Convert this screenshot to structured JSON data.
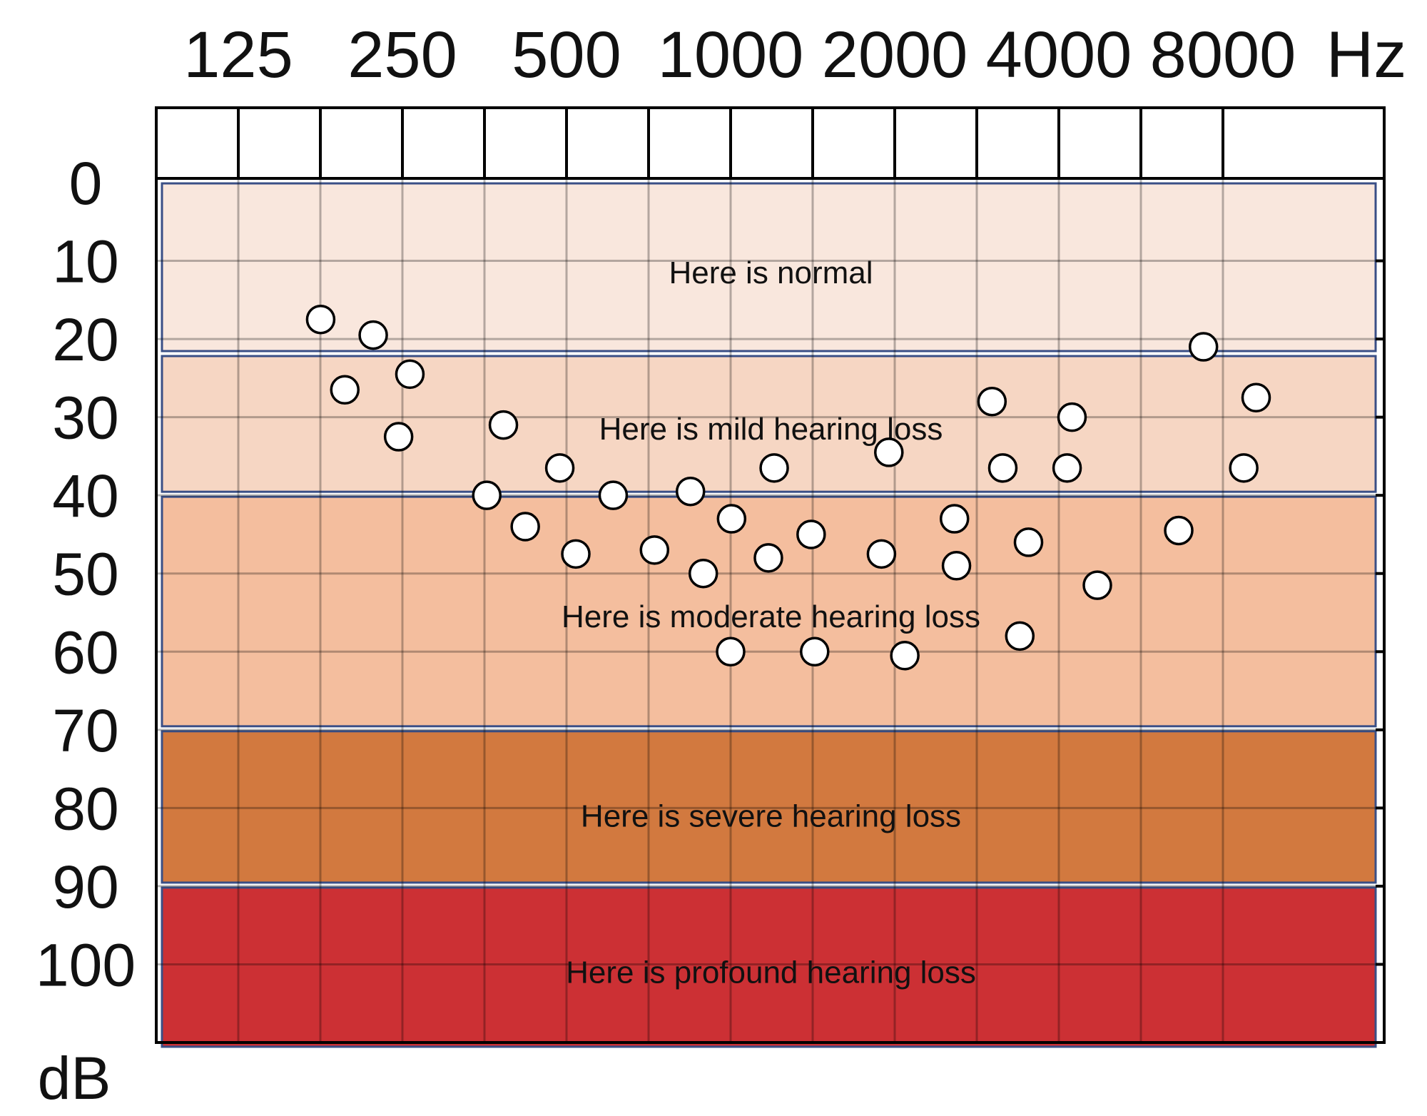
{
  "chart_data": {
    "type": "scatter",
    "title": "",
    "x_unit": "Hz",
    "y_unit": "dB",
    "x_tick_labels": [
      "125",
      "250",
      "500",
      "1000",
      "2000",
      "4000",
      "8000"
    ],
    "y_tick_labels": [
      "0",
      "10",
      "20",
      "30",
      "40",
      "50",
      "60",
      "70",
      "80",
      "90",
      "100"
    ],
    "y_range": [
      0,
      110
    ],
    "y_inverted": true,
    "grid": true,
    "bands": [
      {
        "label": "Here is normal",
        "from": 0,
        "to": 21,
        "color": "#f9e7dd"
      },
      {
        "label": "Here is mild hearing loss",
        "from": 22,
        "to": 39,
        "color": "#f6d6c3"
      },
      {
        "label": "Here is moderate hearing loss",
        "from": 40,
        "to": 69,
        "color": "#f4be9e"
      },
      {
        "label": "Here is severe hearing loss",
        "from": 70,
        "to": 89,
        "color": "#d2793f"
      },
      {
        "label": "Here is profound hearing loss",
        "from": 90,
        "to": 110,
        "color": "#cc3034"
      }
    ],
    "points": [
      {
        "x": 177,
        "y": 17.5
      },
      {
        "x": 196,
        "y": 26.5
      },
      {
        "x": 221,
        "y": 19.5
      },
      {
        "x": 246,
        "y": 32.5
      },
      {
        "x": 258,
        "y": 24.5
      },
      {
        "x": 357,
        "y": 40
      },
      {
        "x": 383,
        "y": 31
      },
      {
        "x": 420,
        "y": 44
      },
      {
        "x": 486,
        "y": 36.5
      },
      {
        "x": 520,
        "y": 47.5
      },
      {
        "x": 609,
        "y": 40
      },
      {
        "x": 725,
        "y": 47
      },
      {
        "x": 844,
        "y": 39.5
      },
      {
        "x": 891,
        "y": 50
      },
      {
        "x": 1004,
        "y": 43
      },
      {
        "x": 1000,
        "y": 60
      },
      {
        "x": 1173,
        "y": 48
      },
      {
        "x": 1202,
        "y": 36.5
      },
      {
        "x": 1405,
        "y": 45
      },
      {
        "x": 1426,
        "y": 60
      },
      {
        "x": 1891,
        "y": 47.5
      },
      {
        "x": 1951,
        "y": 34.5
      },
      {
        "x": 2087,
        "y": 60.5
      },
      {
        "x": 2574,
        "y": 43
      },
      {
        "x": 2596,
        "y": 49
      },
      {
        "x": 3016,
        "y": 28
      },
      {
        "x": 3157,
        "y": 36.5
      },
      {
        "x": 3392,
        "y": 58
      },
      {
        "x": 3519,
        "y": 46
      },
      {
        "x": 4142,
        "y": 36.5
      },
      {
        "x": 4229,
        "y": 30
      },
      {
        "x": 4707,
        "y": 51.5
      },
      {
        "x": 6637,
        "y": 44.5
      },
      {
        "x": 7368,
        "y": 21
      },
      {
        "x": 8735,
        "y": 36.5
      },
      {
        "x": 9203,
        "y": 27.5
      }
    ]
  }
}
